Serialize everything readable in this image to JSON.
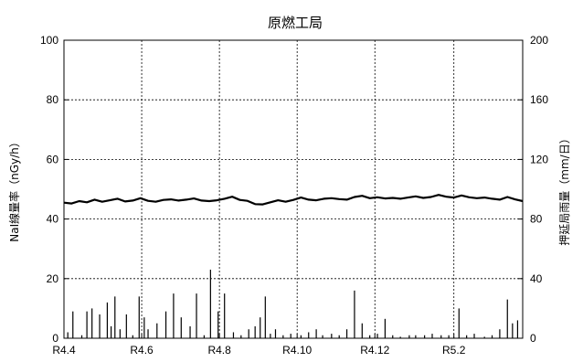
{
  "chart_data": {
    "type": "line",
    "title": "原燃工局",
    "ylabel_left": "NaI線量率（nGy/h）",
    "ylabel_right": "押延局雨量（mm/日）",
    "ylim_left": [
      0,
      100
    ],
    "ylim_right": [
      0,
      200
    ],
    "yticks_left": [
      0,
      20,
      40,
      60,
      80,
      100
    ],
    "yticks_right": [
      0,
      40,
      80,
      120,
      160,
      200
    ],
    "x_range": [
      0,
      360
    ],
    "x_ticks": [
      {
        "label": "R4.4",
        "x": 0
      },
      {
        "label": "R4.6",
        "x": 61
      },
      {
        "label": "R4.8",
        "x": 122
      },
      {
        "label": "R4.10",
        "x": 183
      },
      {
        "label": "R4.12",
        "x": 244
      },
      {
        "label": "R5.2",
        "x": 306
      }
    ],
    "grid": true,
    "series": [
      {
        "axis": "left",
        "style": "line",
        "x": [
          0,
          6,
          12,
          18,
          24,
          30,
          36,
          42,
          48,
          54,
          60,
          66,
          72,
          78,
          84,
          90,
          96,
          102,
          108,
          114,
          120,
          126,
          132,
          138,
          144,
          150,
          156,
          162,
          168,
          174,
          180,
          186,
          192,
          198,
          204,
          210,
          216,
          222,
          228,
          234,
          240,
          246,
          252,
          258,
          264,
          270,
          276,
          282,
          288,
          294,
          300,
          306,
          312,
          318,
          324,
          330,
          336,
          342,
          348,
          354,
          360
        ],
        "values": [
          45.5,
          45.2,
          46.0,
          45.6,
          46.5,
          45.8,
          46.3,
          46.8,
          45.9,
          46.2,
          47.0,
          46.1,
          45.8,
          46.4,
          46.6,
          46.2,
          46.5,
          46.9,
          46.2,
          46.0,
          46.3,
          46.8,
          47.5,
          46.4,
          46.1,
          45.0,
          44.9,
          45.6,
          46.3,
          45.8,
          46.4,
          47.2,
          46.5,
          46.3,
          46.8,
          47.0,
          46.7,
          46.5,
          47.4,
          47.8,
          47.0,
          47.3,
          46.9,
          47.1,
          46.8,
          47.2,
          47.6,
          47.1,
          47.4,
          48.1,
          47.5,
          47.2,
          47.9,
          47.3,
          47.0,
          47.2,
          46.8,
          46.5,
          47.4,
          46.6,
          46.0
        ]
      },
      {
        "axis": "right",
        "style": "bar",
        "x": [
          3,
          7,
          14,
          18,
          22,
          28,
          34,
          37,
          40,
          44,
          49,
          54,
          59,
          63,
          66,
          73,
          80,
          86,
          92,
          99,
          104,
          110,
          115,
          121,
          126,
          133,
          139,
          145,
          150,
          154,
          158,
          162,
          166,
          172,
          178,
          186,
          192,
          198,
          203,
          210,
          216,
          222,
          228,
          234,
          240,
          246,
          252,
          258,
          264,
          271,
          276,
          283,
          289,
          296,
          302,
          310,
          316,
          322,
          330,
          336,
          342,
          348,
          352,
          356
        ],
        "values": [
          4,
          18,
          2,
          18,
          20,
          16,
          24,
          8,
          28,
          6,
          16,
          2,
          28,
          14,
          6,
          10,
          18,
          30,
          14,
          8,
          30,
          2,
          46,
          18,
          30,
          4,
          2,
          6,
          8,
          14,
          28,
          3,
          6,
          2,
          3,
          2,
          4,
          6,
          2,
          3,
          2,
          6,
          32,
          10,
          2,
          3,
          13,
          2,
          1,
          2,
          2,
          2,
          3,
          2,
          2,
          20,
          2,
          3,
          1,
          2,
          6,
          26,
          10,
          12
        ]
      }
    ]
  }
}
